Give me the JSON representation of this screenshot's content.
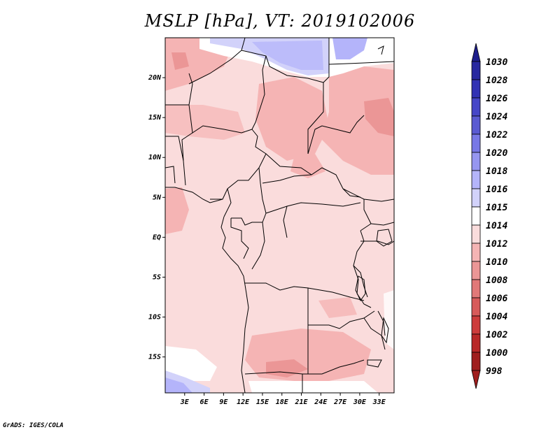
{
  "title": "MSLP [hPa], VT: 2019102006",
  "credit": "GrADS: IGES/COLA",
  "lat_ticks": [
    {
      "label": "20N",
      "value": 20
    },
    {
      "label": "15N",
      "value": 15
    },
    {
      "label": "10N",
      "value": 10
    },
    {
      "label": "5N",
      "value": 5
    },
    {
      "label": "EQ",
      "value": 0
    },
    {
      "label": "5S",
      "value": -5
    },
    {
      "label": "10S",
      "value": -10
    },
    {
      "label": "15S",
      "value": -15
    }
  ],
  "lon_ticks": [
    {
      "label": "3E",
      "value": 3
    },
    {
      "label": "6E",
      "value": 6
    },
    {
      "label": "9E",
      "value": 9
    },
    {
      "label": "12E",
      "value": 12
    },
    {
      "label": "15E",
      "value": 15
    },
    {
      "label": "18E",
      "value": 18
    },
    {
      "label": "21E",
      "value": 21
    },
    {
      "label": "24E",
      "value": 24
    },
    {
      "label": "27E",
      "value": 27
    },
    {
      "label": "30E",
      "value": 30
    },
    {
      "label": "33E",
      "value": 33
    }
  ],
  "colorbar": {
    "levels": [
      {
        "label": "1030",
        "color": "#1e1e8c"
      },
      {
        "label": "1028",
        "color": "#2828a0"
      },
      {
        "label": "1026",
        "color": "#3232b4"
      },
      {
        "label": "1024",
        "color": "#4646c8"
      },
      {
        "label": "1022",
        "color": "#5a5ad2"
      },
      {
        "label": "1020",
        "color": "#7878e6"
      },
      {
        "label": "1018",
        "color": "#9696f0"
      },
      {
        "label": "1016",
        "color": "#b4b4fa"
      },
      {
        "label": "1015",
        "color": "#d2d2fa"
      },
      {
        "label": "1014",
        "color": "#ffffff"
      },
      {
        "label": "1012",
        "color": "#fadcdc"
      },
      {
        "label": "1010",
        "color": "#f5b4b4"
      },
      {
        "label": "1008",
        "color": "#eb9696"
      },
      {
        "label": "1006",
        "color": "#e17878"
      },
      {
        "label": "1004",
        "color": "#d75a5a"
      },
      {
        "label": "1002",
        "color": "#cd3c3c"
      },
      {
        "label": "1000",
        "color": "#b92828"
      },
      {
        "label": "998",
        "color": "#a01e1e"
      }
    ],
    "top_color": "#1e1e8c",
    "bottom_color": "#a01e1e"
  }
}
